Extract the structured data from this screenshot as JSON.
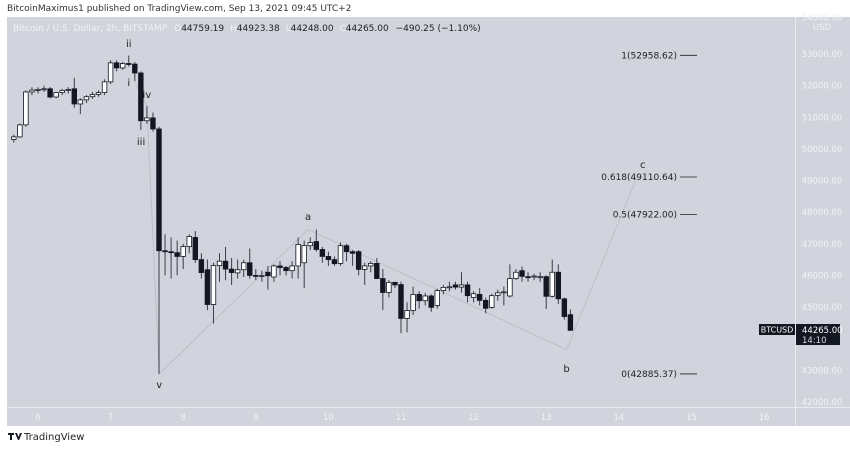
{
  "header": {
    "published": "BitcoinMaximus1 published on TradingView.com, Sep 13, 2021 09:45 UTC+2",
    "symbol_title": "Bitcoin / U.S. Dollar, 2h, BITSTAMP",
    "o_label": "O",
    "o_value": "44759.19",
    "h_label": "H",
    "h_value": "44923.38",
    "l_label": "L",
    "l_value": "44248.00",
    "c_label": "C",
    "c_value": "44265.00",
    "change": "−490.25 (−1.10%)"
  },
  "price_tag": {
    "symbol": "BTCUSD",
    "price": "44265.00",
    "countdown": "14:10"
  },
  "footer": {
    "brand": "TradingView"
  },
  "colors": {
    "background": "#d1d4dc",
    "up": "#ffffff",
    "down": "#131722",
    "wick": "#3a3d46",
    "text_axis": "#f2f3f7"
  },
  "chart_data": {
    "type": "candlestick",
    "title": "Bitcoin / U.S. Dollar, 2h, BITSTAMP",
    "currency": "USD",
    "ylim": [
      41800,
      54200
    ],
    "y_ticks": [
      "54000.00",
      "53000.00",
      "52000.00",
      "51000.00",
      "50000.00",
      "49000.00",
      "48000.00",
      "47000.00",
      "46000.00",
      "45000.00",
      "43000.00",
      "42000.00"
    ],
    "x_ticks": [
      "6",
      "7",
      "8",
      "9",
      "10",
      "11",
      "12",
      "13",
      "14",
      "15",
      "16"
    ],
    "grid": false,
    "candles_columns": [
      "time",
      "open",
      "high",
      "low",
      "close"
    ],
    "candles": [
      [
        "09-05 12:00",
        50250,
        50350,
        50150,
        50280
      ],
      [
        "09-05 14:00",
        50280,
        50400,
        50200,
        50300
      ],
      [
        "09-05 16:00",
        50300,
        50450,
        50200,
        50380
      ],
      [
        "09-05 18:00",
        50380,
        50800,
        50350,
        50760
      ],
      [
        "09-05 20:00",
        50760,
        51850,
        50700,
        51800
      ],
      [
        "09-05 22:00",
        51800,
        51950,
        51700,
        51860
      ],
      [
        "09-06 00:00",
        51860,
        51950,
        51750,
        51880
      ],
      [
        "09-06 02:00",
        51880,
        52000,
        51800,
        51900
      ],
      [
        "09-06 04:00",
        51900,
        51950,
        51600,
        51640
      ],
      [
        "09-06 06:00",
        51640,
        51800,
        51600,
        51780
      ],
      [
        "09-06 08:00",
        51780,
        51900,
        51700,
        51850
      ],
      [
        "09-06 10:00",
        51850,
        51950,
        51750,
        51880
      ],
      [
        "09-06 12:00",
        51900,
        52250,
        51300,
        51420
      ],
      [
        "09-06 14:00",
        51420,
        51600,
        51100,
        51550
      ],
      [
        "09-06 16:00",
        51550,
        51700,
        51450,
        51650
      ],
      [
        "09-06 18:00",
        51650,
        51800,
        51580,
        51720
      ],
      [
        "09-06 20:00",
        51720,
        51850,
        51650,
        51780
      ],
      [
        "09-06 22:00",
        51780,
        52200,
        51700,
        52120
      ],
      [
        "09-07 00:00",
        52120,
        52800,
        52050,
        52720
      ],
      [
        "09-07 02:00",
        52720,
        52800,
        52450,
        52560
      ],
      [
        "09-07 04:00",
        52560,
        52750,
        52500,
        52700
      ],
      [
        "09-07 06:00",
        52700,
        52950,
        52600,
        52680
      ],
      [
        "09-07 08:00",
        52680,
        52750,
        52150,
        52400
      ],
      [
        "09-07 10:00",
        52400,
        52450,
        50600,
        50890
      ],
      [
        "09-07 12:00",
        50890,
        51350,
        50800,
        50980
      ],
      [
        "09-07 14:00",
        50980,
        51150,
        50550,
        50630
      ],
      [
        "09-07 16:00",
        50630,
        50700,
        42885,
        46780
      ],
      [
        "09-07 18:00",
        46780,
        47300,
        46000,
        46750
      ],
      [
        "09-07 20:00",
        46750,
        47200,
        45900,
        46720
      ],
      [
        "09-07 22:00",
        46720,
        47100,
        46000,
        46600
      ],
      [
        "09-08 00:00",
        46600,
        47000,
        46200,
        46910
      ],
      [
        "09-08 02:00",
        46910,
        47300,
        46700,
        47230
      ],
      [
        "09-08 04:00",
        47200,
        47400,
        46400,
        46500
      ],
      [
        "09-08 06:00",
        46500,
        46700,
        45900,
        46090
      ],
      [
        "09-08 08:00",
        46180,
        46500,
        44900,
        45080
      ],
      [
        "09-08 10:00",
        45080,
        46400,
        44480,
        46310
      ],
      [
        "09-08 12:00",
        46310,
        46700,
        45800,
        46450
      ],
      [
        "09-08 14:00",
        46450,
        46900,
        45850,
        46200
      ],
      [
        "09-08 16:00",
        46200,
        46550,
        45700,
        46090
      ],
      [
        "09-08 18:00",
        46080,
        46500,
        45900,
        46180
      ],
      [
        "09-08 20:00",
        46180,
        46500,
        45950,
        46400
      ],
      [
        "09-08 22:00",
        46400,
        46850,
        45900,
        46000
      ],
      [
        "09-09 00:00",
        46000,
        46200,
        45850,
        45970
      ],
      [
        "09-09 02:00",
        45970,
        46150,
        45800,
        46000
      ],
      [
        "09-09 04:00",
        46100,
        46300,
        45550,
        45990
      ],
      [
        "09-09 06:00",
        45950,
        46350,
        45800,
        46300
      ],
      [
        "09-09 08:00",
        46300,
        46450,
        46000,
        46250
      ],
      [
        "09-09 10:00",
        46250,
        46300,
        46000,
        46150
      ],
      [
        "09-09 12:00",
        46150,
        46450,
        45900,
        46300
      ],
      [
        "09-09 14:00",
        46300,
        47200,
        45900,
        46980
      ],
      [
        "09-09 16:00",
        46400,
        47100,
        45600,
        46940
      ],
      [
        "09-09 18:00",
        46940,
        47200,
        46800,
        47040
      ],
      [
        "09-09 20:00",
        47070,
        47450,
        46750,
        46820
      ],
      [
        "09-09 22:00",
        46820,
        46900,
        46400,
        46600
      ],
      [
        "09-10 00:00",
        46600,
        46750,
        46300,
        46500
      ],
      [
        "09-10 02:00",
        46500,
        46600,
        46300,
        46370
      ],
      [
        "09-10 04:00",
        46380,
        47050,
        46300,
        46940
      ],
      [
        "09-10 06:00",
        46940,
        47000,
        46450,
        46750
      ],
      [
        "09-10 08:00",
        46750,
        46800,
        46300,
        46700
      ],
      [
        "09-10 10:00",
        46750,
        46800,
        46000,
        46190
      ],
      [
        "09-10 12:00",
        46190,
        46400,
        45700,
        46300
      ],
      [
        "09-10 14:00",
        46300,
        46450,
        46100,
        46380
      ],
      [
        "09-10 16:00",
        46380,
        46550,
        45900,
        45900
      ],
      [
        "09-10 18:00",
        45900,
        46200,
        44900,
        45460
      ],
      [
        "09-10 20:00",
        45460,
        45850,
        45300,
        45780
      ],
      [
        "09-10 22:00",
        45780,
        45800,
        45600,
        45700
      ],
      [
        "09-11 00:00",
        45710,
        45800,
        44170,
        44640
      ],
      [
        "09-11 02:00",
        44640,
        45150,
        44200,
        44890
      ],
      [
        "09-11 04:00",
        44890,
        45650,
        44750,
        45400
      ],
      [
        "09-11 06:00",
        45400,
        45500,
        44950,
        45200
      ],
      [
        "09-11 08:00",
        45200,
        45450,
        45050,
        45350
      ],
      [
        "09-11 10:00",
        45350,
        45400,
        44850,
        44990
      ],
      [
        "09-11 12:00",
        45050,
        45580,
        44950,
        45520
      ],
      [
        "09-11 14:00",
        45520,
        45700,
        45400,
        45620
      ],
      [
        "09-11 16:00",
        45620,
        45800,
        45500,
        45640
      ],
      [
        "09-11 18:00",
        45700,
        45800,
        45550,
        45630
      ],
      [
        "09-11 20:00",
        45630,
        46100,
        45450,
        45700
      ],
      [
        "09-11 22:00",
        45700,
        45800,
        45150,
        45360
      ],
      [
        "09-12 00:00",
        45300,
        45500,
        45150,
        45420
      ],
      [
        "09-12 02:00",
        45400,
        45600,
        45050,
        45210
      ],
      [
        "09-12 04:00",
        45210,
        45300,
        44800,
        44960
      ],
      [
        "09-12 06:00",
        44990,
        45420,
        44950,
        45360
      ],
      [
        "09-12 08:00",
        45370,
        45550,
        45200,
        45450
      ],
      [
        "09-12 10:00",
        45450,
        45650,
        45050,
        45480
      ],
      [
        "09-12 12:00",
        45350,
        46350,
        45300,
        45900
      ],
      [
        "09-12 14:00",
        45900,
        46200,
        45850,
        46100
      ],
      [
        "09-12 16:00",
        46150,
        46280,
        45800,
        45970
      ],
      [
        "09-12 18:00",
        45960,
        46100,
        45800,
        45950
      ],
      [
        "09-12 20:00",
        45950,
        46050,
        45850,
        45980
      ],
      [
        "09-12 22:00",
        45950,
        46100,
        45800,
        45960
      ],
      [
        "09-13 00:00",
        45960,
        46000,
        44940,
        45340
      ],
      [
        "09-13 02:00",
        45340,
        46500,
        45300,
        46100
      ],
      [
        "09-13 04:00",
        46100,
        46350,
        45100,
        45260
      ],
      [
        "09-13 06:00",
        45260,
        45300,
        44600,
        44700
      ],
      [
        "09-13 08:00",
        44759,
        44923,
        44248,
        44265
      ]
    ],
    "wave_labels": [
      {
        "label": "ii"
      },
      {
        "label": "i"
      },
      {
        "label": "iv"
      },
      {
        "label": "iii"
      },
      {
        "label": "v"
      },
      {
        "label": "a"
      },
      {
        "label": "b"
      },
      {
        "label": "c"
      }
    ],
    "fib_levels": [
      {
        "label": "1(52958.62)",
        "price": 52958.62
      },
      {
        "label": "0.618(49110.64)",
        "price": 49110.64
      },
      {
        "label": "0.5(47922.00)",
        "price": 47922.0
      },
      {
        "label": "0(42885.37)",
        "price": 42885.37
      }
    ]
  }
}
